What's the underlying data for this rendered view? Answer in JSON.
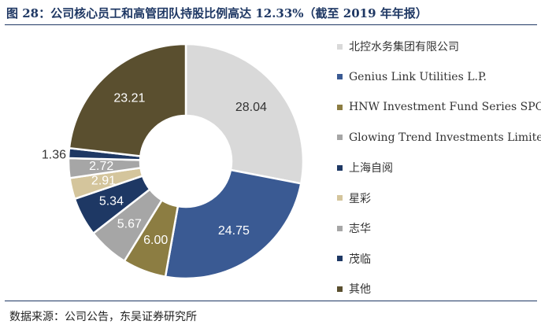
{
  "header": {
    "title": "图 28：公司核心员工和高管团队持股比例高达 12.33%（截至 2019 年年报）"
  },
  "footer": {
    "source": "数据来源：公司公告，东吴证券研究所"
  },
  "chart_data": {
    "type": "pie",
    "donut": true,
    "legend_position": "right",
    "categories": [
      "北控水务集团有限公司",
      "Genius Link Utilities L.P.",
      "HNW Investment Fund Series SPC",
      "Glowing Trend Investments Limited",
      "上海自阅",
      "星彩",
      "志华",
      "茂临",
      "其他"
    ],
    "values": [
      28.04,
      24.75,
      6.0,
      5.67,
      5.34,
      2.91,
      2.72,
      1.36,
      23.21
    ],
    "labels": [
      "28.04",
      "24.75",
      "6.00",
      "5.67",
      "5.34",
      "2.91",
      "2.72",
      "1.36",
      "23.21"
    ],
    "colors": [
      "#d9d9d9",
      "#3a5a93",
      "#8c7d42",
      "#a6a6a6",
      "#1e3864",
      "#d4c59c",
      "#a6a6a6",
      "#1e3864",
      "#5a4f2f"
    ],
    "label_colors": [
      "#333333",
      "#ffffff",
      "#ffffff",
      "#ffffff",
      "#ffffff",
      "#ffffff",
      "#ffffff",
      "#333333",
      "#ffffff"
    ]
  }
}
